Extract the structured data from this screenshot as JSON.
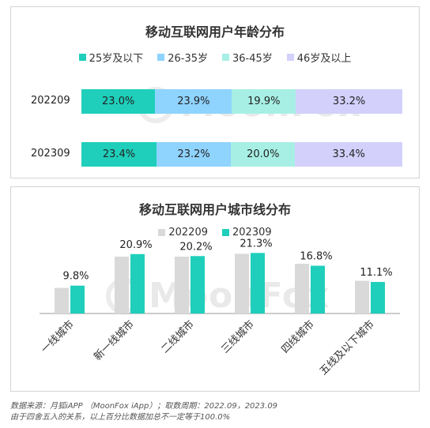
{
  "colors": {
    "age_25_below": "#1fcfbb",
    "age_26_35": "#8fd3ff",
    "age_36_45": "#a7efe4",
    "age_46_above": "#d3d0fb",
    "city_2022": "#d9d9d9",
    "city_2023": "#1fcfbb"
  },
  "watermark": {
    "text": "MoonFox"
  },
  "chart_data": [
    {
      "type": "bar",
      "stacked": true,
      "orientation": "horizontal",
      "title": "移动互联网用户年龄分布",
      "categories": [
        "202209",
        "202309"
      ],
      "series": [
        {
          "name": "25岁及以下",
          "values": [
            23.0,
            23.4
          ],
          "labels": [
            "23.0%",
            "23.4%"
          ],
          "color": "#1fcfbb"
        },
        {
          "name": "26-35岁",
          "values": [
            23.9,
            23.2
          ],
          "labels": [
            "23.9%",
            "23.2%"
          ],
          "color": "#8fd3ff"
        },
        {
          "name": "36-45岁",
          "values": [
            19.9,
            20.0
          ],
          "labels": [
            "19.9%",
            "20.0%"
          ],
          "color": "#a7efe4"
        },
        {
          "name": "46岁及以上",
          "values": [
            33.2,
            33.4
          ],
          "labels": [
            "33.2%",
            "33.4%"
          ],
          "color": "#d3d0fb"
        }
      ],
      "legend": "top"
    },
    {
      "type": "bar",
      "title": "移动互联网用户城市线分布",
      "categories": [
        "一线城市",
        "新一线城市",
        "二线城市",
        "三线城市",
        "四线城市",
        "五线及以下城市"
      ],
      "series": [
        {
          "name": "202209",
          "values": [
            9.0,
            20.0,
            20.0,
            21.0,
            17.5,
            11.5
          ],
          "color": "#d9d9d9"
        },
        {
          "name": "202309",
          "values": [
            9.8,
            20.9,
            20.2,
            21.3,
            16.8,
            11.1
          ],
          "labels": [
            "9.8%",
            "20.9%",
            "20.2%",
            "21.3%",
            "16.8%",
            "11.1%"
          ],
          "color": "#1fcfbb"
        }
      ],
      "ylim": [
        0,
        25
      ],
      "grid": false,
      "legend": "top"
    }
  ],
  "footnote": {
    "line1": "数据来源：月狐iAPP （MoonFox iApp）；取数周期：2022.09，2023.09",
    "line2": "由于四舍五入的关系，以上百分比数据加总不一定等于100.0%"
  }
}
